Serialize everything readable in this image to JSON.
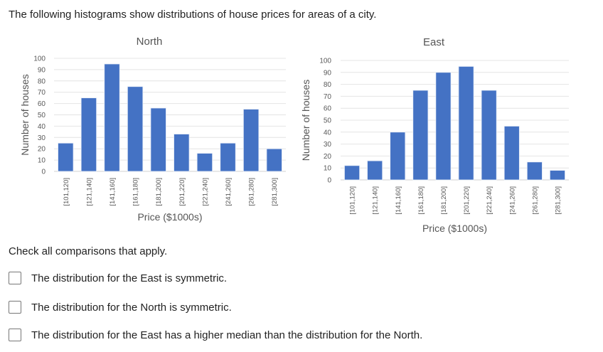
{
  "intro": "The following histograms show distributions of house prices for areas of a city.",
  "chart_data": [
    {
      "type": "bar",
      "title": "North",
      "xlabel": "Price ($1000s)",
      "ylabel": "Number of houses",
      "ylim": [
        0,
        100
      ],
      "yticks": [
        0,
        10,
        20,
        30,
        40,
        50,
        60,
        70,
        80,
        90,
        100
      ],
      "grid": true,
      "categories": [
        "[101,120]",
        "[121,140]",
        "[141,160]",
        "[161,180]",
        "[181,200]",
        "[201,220]",
        "[221,240]",
        "[241,260]",
        "[261,280]",
        "[281,300]"
      ],
      "values": [
        25,
        65,
        95,
        75,
        56,
        33,
        16,
        25,
        55,
        20
      ],
      "color": "#4472c4"
    },
    {
      "type": "bar",
      "title": "East",
      "xlabel": "Price ($1000s)",
      "ylabel": "Number of houses",
      "ylim": [
        0,
        100
      ],
      "yticks": [
        0,
        10,
        20,
        30,
        40,
        50,
        60,
        70,
        80,
        90,
        100
      ],
      "grid": true,
      "categories": [
        "[101,120]",
        "[121,140]",
        "[141,160]",
        "[161,180]",
        "[181,200]",
        "[201,220]",
        "[221,240]",
        "[241,260]",
        "[261,280]",
        "[281,300]"
      ],
      "values": [
        12,
        16,
        40,
        75,
        90,
        95,
        75,
        45,
        15,
        8
      ],
      "color": "#4472c4"
    }
  ],
  "question": {
    "prompt": "Check all comparisons that apply.",
    "options": [
      "The distribution for the East is symmetric.",
      "The distribution for the North is symmetric.",
      "The distribution for the East has a higher median than the distribution for the North."
    ]
  }
}
